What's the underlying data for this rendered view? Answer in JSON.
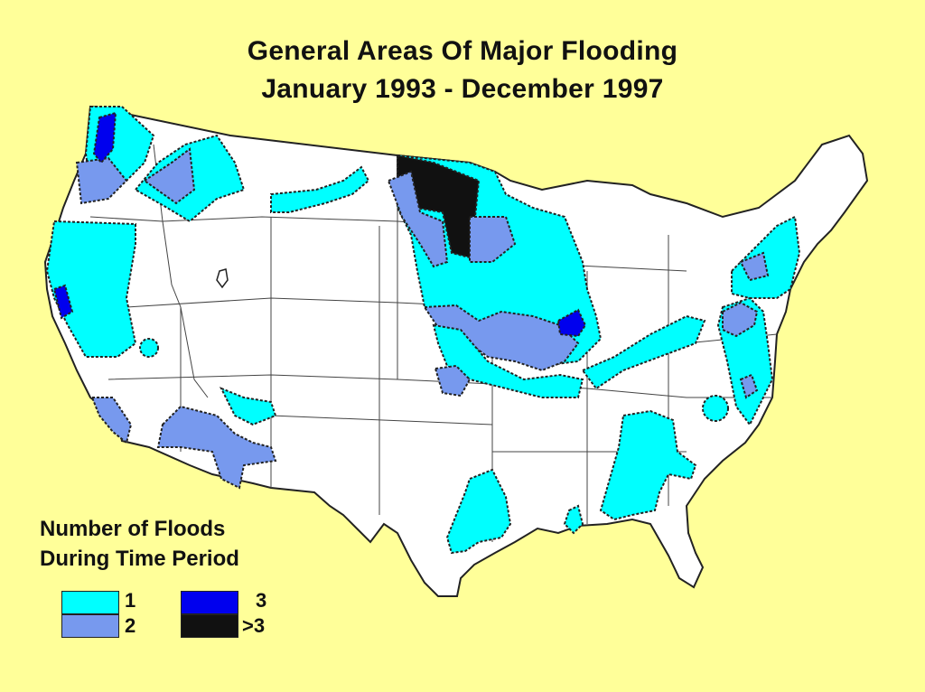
{
  "title": {
    "line1": "General Areas Of Major Flooding",
    "line2": "January 1993 - December 1997"
  },
  "legend": {
    "heading_line1": "Number of Floods",
    "heading_line2": "During Time Period",
    "items": [
      {
        "label": "1",
        "color": "#00ffff"
      },
      {
        "label": "2",
        "color": "#7799ee"
      },
      {
        "label": "3",
        "color": "#0000ee"
      },
      {
        "label": ">3",
        "color": "#111111"
      }
    ]
  },
  "colors": {
    "background": "#ffff99",
    "land": "#ffffff",
    "borders": "#222222"
  }
}
